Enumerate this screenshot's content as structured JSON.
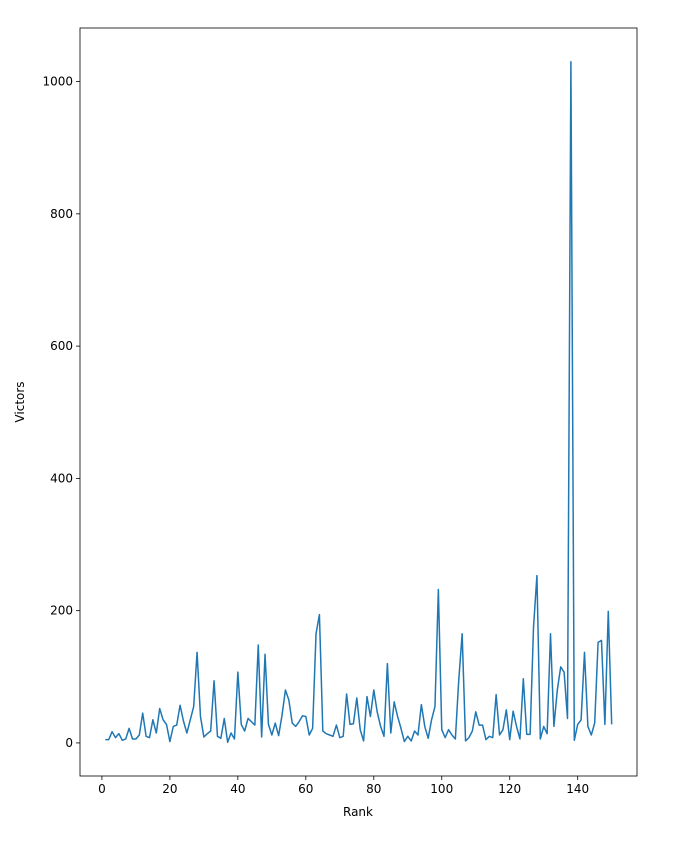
{
  "chart_data": {
    "type": "line",
    "xlabel": "Rank",
    "ylabel": "Victors",
    "x": [
      1,
      2,
      3,
      4,
      5,
      6,
      7,
      8,
      9,
      10,
      11,
      12,
      13,
      14,
      15,
      16,
      17,
      18,
      19,
      20,
      21,
      22,
      23,
      24,
      25,
      26,
      27,
      28,
      29,
      30,
      31,
      32,
      33,
      34,
      35,
      36,
      37,
      38,
      39,
      40,
      41,
      42,
      43,
      44,
      45,
      46,
      47,
      48,
      49,
      50,
      51,
      52,
      53,
      54,
      55,
      56,
      57,
      58,
      59,
      60,
      61,
      62,
      63,
      64,
      65,
      66,
      67,
      68,
      69,
      70,
      71,
      72,
      73,
      74,
      75,
      76,
      77,
      78,
      79,
      80,
      81,
      82,
      83,
      84,
      85,
      86,
      87,
      88,
      89,
      90,
      91,
      92,
      93,
      94,
      95,
      96,
      97,
      98,
      99,
      100,
      101,
      102,
      103,
      104,
      105,
      106,
      107,
      108,
      109,
      110,
      111,
      112,
      113,
      114,
      115,
      116,
      117,
      118,
      119,
      120,
      121,
      122,
      123,
      124,
      125,
      126,
      127,
      128,
      129,
      130,
      131,
      132,
      133,
      134,
      135,
      136,
      137,
      138,
      139,
      140,
      141,
      142,
      143,
      144,
      145,
      146,
      147,
      148,
      149,
      150
    ],
    "series": [
      {
        "color": "#1f77b4",
        "values": [
          5,
          5,
          17,
          8,
          14,
          4,
          6,
          22,
          6,
          6,
          12,
          45,
          10,
          8,
          35,
          15,
          52,
          35,
          28,
          2,
          25,
          27,
          57,
          33,
          15,
          35,
          55,
          137,
          40,
          9,
          14,
          18,
          94,
          10,
          7,
          37,
          1,
          15,
          6,
          107,
          28,
          18,
          37,
          32,
          27,
          148,
          9,
          134,
          28,
          12,
          30,
          11,
          42,
          80,
          65,
          30,
          25,
          32,
          41,
          40,
          12,
          22,
          165,
          194,
          18,
          14,
          12,
          10,
          27,
          8,
          10,
          74,
          28,
          29,
          68,
          20,
          3,
          70,
          40,
          80,
          47,
          25,
          10,
          120,
          15,
          62,
          40,
          22,
          2,
          10,
          3,
          18,
          12,
          58,
          25,
          7,
          35,
          55,
          232,
          20,
          8,
          20,
          12,
          6,
          95,
          165,
          3,
          8,
          18,
          47,
          27,
          27,
          5,
          10,
          8,
          73,
          12,
          20,
          50,
          5,
          48,
          25,
          6,
          97,
          13,
          13,
          175,
          253,
          6,
          25,
          14,
          165,
          25,
          80,
          115,
          107,
          37,
          1030,
          4,
          28,
          35,
          137,
          25,
          12,
          30,
          152,
          155,
          28,
          199,
          28
        ]
      }
    ],
    "xlim": [
      -6.45,
      157.45
    ],
    "xticks": [
      0,
      20,
      40,
      60,
      80,
      100,
      120,
      140
    ],
    "ylim": [
      -50,
      1081
    ],
    "yticks": [
      0,
      200,
      400,
      600,
      800,
      1000
    ]
  }
}
